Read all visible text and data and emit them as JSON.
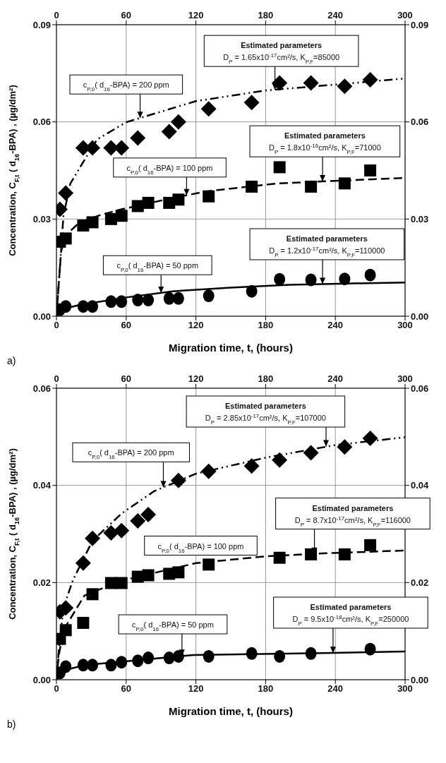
{
  "chart_data": [
    {
      "type": "scatter",
      "xlabel": "Migration time, t, (hours)",
      "ylabel": "Concentration,  C$_{F,t}$ ( d$_{16}$-BPA)  ,  (µg/dm²)",
      "x": [
        3,
        8,
        23,
        31,
        47,
        56,
        70,
        79,
        97,
        105,
        131,
        168,
        192,
        219,
        248,
        270
      ],
      "xlim": [
        0,
        300
      ],
      "xticks": [
        0,
        60,
        120,
        180,
        240,
        300
      ],
      "x2lim": [
        0,
        300
      ],
      "x2ticks": [
        0,
        60,
        120,
        180,
        240,
        300
      ],
      "ylim": [
        0,
        0.09
      ],
      "yticks": [
        {
          "value": 0,
          "label": "0.00"
        },
        0.03,
        0.06,
        0.09
      ],
      "y2lim": [
        0,
        0.09
      ],
      "y2ticks": [
        {
          "value": 0,
          "label": "0.00"
        },
        0.03,
        0.06,
        0.09
      ],
      "grid": true,
      "series": [
        {
          "marker": "diamond",
          "color": "#000000",
          "values": [
            0.033,
            0.038,
            0.052,
            0.052,
            0.052,
            0.052,
            0.055,
            null,
            0.057,
            0.06,
            0.064,
            0.066,
            0.072,
            0.072,
            0.071,
            0.073
          ]
        },
        {
          "marker": "square",
          "color": "#000000",
          "values": [
            0.023,
            0.024,
            0.028,
            0.029,
            0.03,
            0.031,
            0.034,
            0.035,
            0.035,
            0.036,
            0.037,
            0.04,
            0.046,
            0.04,
            0.041,
            0.045
          ]
        },
        {
          "marker": "circle",
          "color": "#000000",
          "values": [
            0.002,
            0.003,
            0.003,
            0.003,
            0.0045,
            0.0045,
            0.005,
            0.005,
            0.0055,
            0.0055,
            0.0063,
            0.0077,
            0.0114,
            0.0112,
            0.0115,
            0.0127
          ]
        },
        {
          "type": "line",
          "line_style": "dashdot",
          "marker": "none",
          "color": "#000000",
          "x": [
            0,
            2,
            6,
            12,
            22,
            35,
            60,
            120,
            180,
            240,
            300
          ],
          "values": [
            0,
            0.01,
            0.031,
            0.041,
            0.047,
            0.0546,
            0.0599,
            0.0664,
            0.0697,
            0.0715,
            0.0734
          ]
        },
        {
          "type": "line",
          "line_style": "dashed",
          "marker": "none",
          "color": "#000000",
          "x": [
            0,
            2,
            4,
            8,
            20,
            40,
            56,
            100,
            130,
            190,
            240,
            300
          ],
          "values": [
            0,
            0.01,
            0.02,
            0.025,
            0.029,
            0.0315,
            0.033,
            0.0365,
            0.0386,
            0.041,
            0.0418,
            0.0427
          ]
        },
        {
          "type": "line",
          "line_style": "solid",
          "marker": "none",
          "color": "#000000",
          "x": [
            0,
            3,
            20,
            60,
            100,
            150,
            200,
            250,
            300
          ],
          "values": [
            0,
            0.002,
            0.0035,
            0.0058,
            0.0077,
            0.0088,
            0.0097,
            0.0101,
            0.0104
          ]
        }
      ],
      "annotations": [
        {
          "text": "c$_{P,0}$( d$_{16}$-BPA) = 200 ppm",
          "x": 72,
          "y": 0.0612
        },
        "Estimated parameters",
        {
          "text": "D$_{P}$ =  1.65x10$^{-17}$cm²/s,  K$_{P,F}$=85000",
          "x": 188,
          "y": 0.0699
        },
        {
          "text": "c$_{P,0}$( d$_{16}$-BPA) = 100 ppm",
          "x": 112,
          "y": 0.0373
        },
        "Estimated parameters",
        {
          "text": "D$_{P}$ =  1.8x10$^{-16}$cm²/s,  K$_{P,F}$=71000",
          "x": 229,
          "y": 0.0416
        },
        {
          "text": "c$_{P,0}$( d$_{16}$-BPA) = 50 ppm",
          "x": 90,
          "y": 0.0072
        },
        "Estimated parameters",
        {
          "text": "D$_{P}$ =  1.2x10$^{-17}$cm²/s,  K$_{P,F}$=110000",
          "x": 229,
          "y": 0.0099
        },
        "a)"
      ]
    },
    {
      "type": "scatter",
      "xlabel": "Migration time, t, (hours)",
      "ylabel": "Concentration,  C$_{F,t}$ ( d$_{16}$-BPA)  ,  (µg/dm²)",
      "x": [
        3,
        8,
        23,
        31,
        47,
        56,
        70,
        79,
        97,
        105,
        131,
        168,
        192,
        219,
        248,
        270
      ],
      "xlim": [
        0,
        300
      ],
      "xticks": [
        0,
        60,
        120,
        180,
        240,
        300
      ],
      "x2lim": [
        0,
        300
      ],
      "x2ticks": [
        0,
        60,
        120,
        180,
        240,
        300
      ],
      "ylim": [
        0,
        0.06
      ],
      "yticks": [
        {
          "value": 0,
          "label": "0.00"
        },
        0.02,
        0.04,
        0.06
      ],
      "y2lim": [
        0,
        0.06
      ],
      "y2ticks": [
        {
          "value": 0,
          "label": "0.00"
        },
        0.02,
        0.04,
        0.06
      ],
      "grid": true,
      "series": [
        {
          "marker": "diamond",
          "color": "#000000",
          "values": [
            0.014,
            0.0148,
            0.024,
            0.0291,
            0.0302,
            0.0307,
            0.0327,
            0.034,
            null,
            0.041,
            0.0429,
            0.044,
            0.0452,
            0.0467,
            0.0479,
            0.0497
          ]
        },
        {
          "marker": "square",
          "color": "#000000",
          "values": [
            0.0084,
            0.0102,
            0.0117,
            0.0176,
            0.0199,
            0.0199,
            0.0212,
            0.0215,
            0.0218,
            0.0221,
            0.0237,
            null,
            0.0251,
            0.0258,
            0.0258,
            0.0277
          ]
        },
        {
          "marker": "circle",
          "color": "#000000",
          "values": [
            0.0014,
            0.0027,
            0.003,
            0.003,
            0.003,
            0.0036,
            0.0039,
            0.0045,
            0.0045,
            0.0048,
            0.0048,
            0.0054,
            0.0048,
            0.0054,
            null,
            0.0063
          ]
        },
        {
          "type": "line",
          "line_style": "dashdot",
          "marker": "none",
          "color": "#000000",
          "x": [
            0,
            2,
            6,
            14,
            31,
            56,
            84,
            120,
            180,
            240,
            300
          ],
          "values": [
            0,
            0.006,
            0.0148,
            0.0204,
            0.0286,
            0.0342,
            0.0388,
            0.0424,
            0.0457,
            0.0483,
            0.0499
          ]
        },
        {
          "type": "line",
          "line_style": "dashed",
          "marker": "none",
          "color": "#000000",
          "x": [
            0,
            2,
            6,
            24,
            56,
            120,
            180,
            229,
            300
          ],
          "values": [
            0,
            0.005,
            0.0102,
            0.0173,
            0.0204,
            0.024,
            0.0254,
            0.026,
            0.0266
          ]
        },
        {
          "type": "line",
          "line_style": "solid",
          "marker": "none",
          "color": "#000000",
          "x": [
            0,
            6,
            24,
            56,
            118,
            230,
            300
          ],
          "values": [
            0,
            0.0019,
            0.003,
            0.0037,
            0.0051,
            0.0055,
            0.0058
          ]
        }
      ],
      "annotations": [
        "Estimated parameters",
        {
          "text": "D$_{P}$ =  2.85x10$^{-17}$cm²/s,  K$_{P,F}$=107000",
          "x": 232,
          "y": 0.048
        },
        {
          "text": "c$_{P,0}$( d$_{16}$-BPA)  = 200 ppm",
          "x": 92,
          "y": 0.0396
        },
        "c$_{P,0}$( d$_{16}$-BPA) = 100 ppm",
        "Estimated parameters",
        {
          "text": "D$_{P}$ =  8.7x10$^{-17}$cm²/s,  K$_{P,F}$=116000",
          "x": 222,
          "y": 0.0259
        },
        {
          "text": "c$_{P,0}$( d$_{16}$-BPA) = 50 ppm",
          "x": 108,
          "y": 0.0049
        },
        "Estimated parameters",
        {
          "text": "D$_{P}$ =  9.5x10$^{-18}$cm²/s,  K$_{P,F}$=250000",
          "x": 238,
          "y": 0.0055
        },
        "b)"
      ]
    }
  ]
}
